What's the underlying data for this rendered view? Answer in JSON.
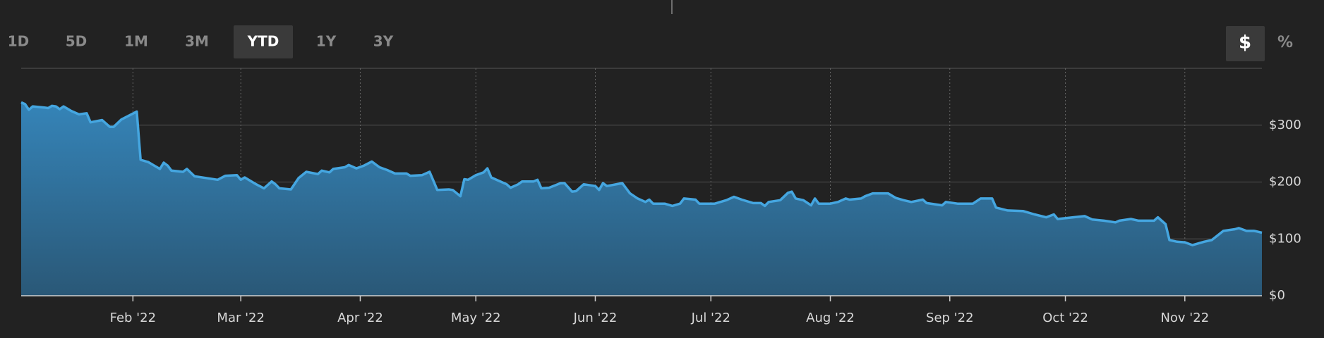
{
  "controls": {
    "ranges": [
      "1D",
      "5D",
      "1M",
      "3M",
      "YTD",
      "1Y",
      "3Y"
    ],
    "selected_range": "YTD",
    "units": [
      "$",
      "%"
    ],
    "selected_unit": "$"
  },
  "chart_data": {
    "type": "area",
    "color": "#45a6e0",
    "x": [
      3,
      4,
      5,
      6,
      9,
      10,
      11,
      12,
      13,
      14,
      16,
      18,
      20,
      21,
      24,
      26,
      27,
      29,
      33,
      34,
      36,
      39,
      40,
      41,
      42,
      45,
      46,
      48,
      51,
      54,
      56,
      59,
      60,
      61,
      64,
      66,
      68,
      69,
      70,
      73,
      75,
      77,
      80,
      81,
      83,
      84,
      87,
      88,
      90,
      92,
      94,
      96,
      98,
      100,
      103,
      104,
      107,
      109,
      110,
      111,
      114,
      115,
      117,
      118,
      119,
      121,
      123,
      124,
      125,
      127,
      129,
      130,
      132,
      133,
      136,
      137,
      138,
      140,
      143,
      144,
      146,
      147,
      149,
      152,
      153,
      154,
      155,
      159,
      161,
      163,
      165,
      166,
      167,
      170,
      172,
      174,
      175,
      178,
      179,
      183,
      186,
      188,
      190,
      193,
      195,
      196,
      197,
      200,
      202,
      203,
      204,
      206,
      208,
      209,
      210,
      213,
      215,
      217,
      218,
      221,
      222,
      224,
      228,
      230,
      232,
      234,
      237,
      238,
      242,
      243,
      246,
      250,
      252,
      255,
      256,
      259,
      263,
      266,
      269,
      271,
      272,
      276,
      279,
      281,
      284,
      287,
      288,
      291,
      293,
      297,
      298,
      300,
      301,
      303,
      305,
      307,
      310,
      312,
      315,
      318,
      319,
      321,
      323,
      325
    ],
    "values": [
      340,
      337,
      327,
      333,
      331,
      330,
      334,
      333,
      328,
      333,
      325,
      319,
      321,
      305,
      309,
      297,
      297,
      310,
      324,
      239,
      235,
      223,
      234,
      229,
      220,
      218,
      223,
      210,
      207,
      204,
      211,
      212,
      204,
      208,
      196,
      189,
      201,
      196,
      189,
      187,
      207,
      218,
      214,
      220,
      217,
      223,
      226,
      230,
      224,
      229,
      236,
      226,
      221,
      215,
      215,
      211,
      212,
      218,
      202,
      186,
      187,
      186,
      175,
      205,
      204,
      212,
      217,
      224,
      208,
      202,
      196,
      190,
      196,
      201,
      201,
      204,
      189,
      190,
      198,
      198,
      183,
      184,
      196,
      193,
      186,
      198,
      193,
      198,
      180,
      171,
      165,
      169,
      162,
      162,
      158,
      162,
      171,
      169,
      162,
      162,
      168,
      174,
      169,
      163,
      163,
      158,
      165,
      168,
      181,
      183,
      171,
      168,
      159,
      171,
      162,
      162,
      165,
      171,
      169,
      171,
      175,
      180,
      180,
      172,
      168,
      165,
      169,
      163,
      159,
      165,
      162,
      162,
      171,
      171,
      155,
      150,
      149,
      143,
      138,
      143,
      135,
      138,
      140,
      134,
      132,
      129,
      132,
      135,
      132,
      132,
      138,
      126,
      98,
      95,
      94,
      89,
      95,
      98,
      114,
      117,
      119,
      114,
      114,
      111
    ],
    "xlim": [
      3,
      325
    ],
    "xticks": [
      {
        "value": 32,
        "label": "Feb '22"
      },
      {
        "value": 60,
        "label": "Mar '22"
      },
      {
        "value": 91,
        "label": "Apr '22"
      },
      {
        "value": 121,
        "label": "May '22"
      },
      {
        "value": 152,
        "label": "Jun '22"
      },
      {
        "value": 182,
        "label": "Jul '22"
      },
      {
        "value": 213,
        "label": "Aug '22"
      },
      {
        "value": 244,
        "label": "Sep '22"
      },
      {
        "value": 274,
        "label": "Oct '22"
      },
      {
        "value": 305,
        "label": "Nov '22"
      }
    ],
    "ylim": [
      0,
      400
    ],
    "yticks": [
      {
        "value": 0,
        "label": "$0"
      },
      {
        "value": 100,
        "label": "$100"
      },
      {
        "value": 200,
        "label": "$200"
      },
      {
        "value": 300,
        "label": "$300"
      }
    ],
    "grid": true
  }
}
